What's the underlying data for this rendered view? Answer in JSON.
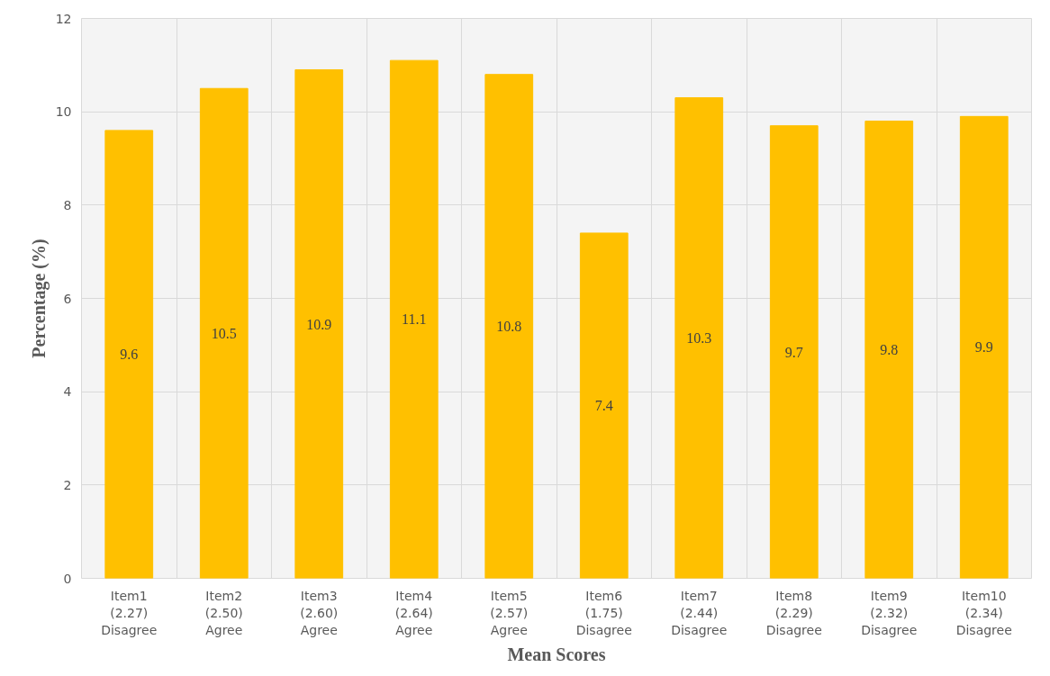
{
  "chart_data": {
    "type": "bar",
    "xlabel": "Mean Scores",
    "ylabel": "Percentage (%)",
    "categories": [
      "Item1\n(2.27)\nDisagree",
      "Item2\n(2.50)\nAgree",
      "Item3\n(2.60)\nAgree",
      "Item4\n(2.64)\nAgree",
      "Item5\n(2.57)\nAgree",
      "Item6\n(1.75)\nDisagree",
      "Item7\n(2.44)\nDisagree",
      "Item8\n(2.29)\nDisagree",
      "Item9\n(2.32)\nDisagree",
      "Item10\n(2.34)\nDisagree"
    ],
    "values": [
      9.6,
      10.5,
      10.9,
      11.1,
      10.8,
      7.4,
      10.3,
      9.7,
      9.8,
      9.9
    ],
    "color": "#ffc000",
    "ylim": [
      0,
      12
    ],
    "yticks": [
      0,
      2,
      4,
      6,
      8,
      10,
      12
    ],
    "grid": true,
    "data_labels": true
  }
}
